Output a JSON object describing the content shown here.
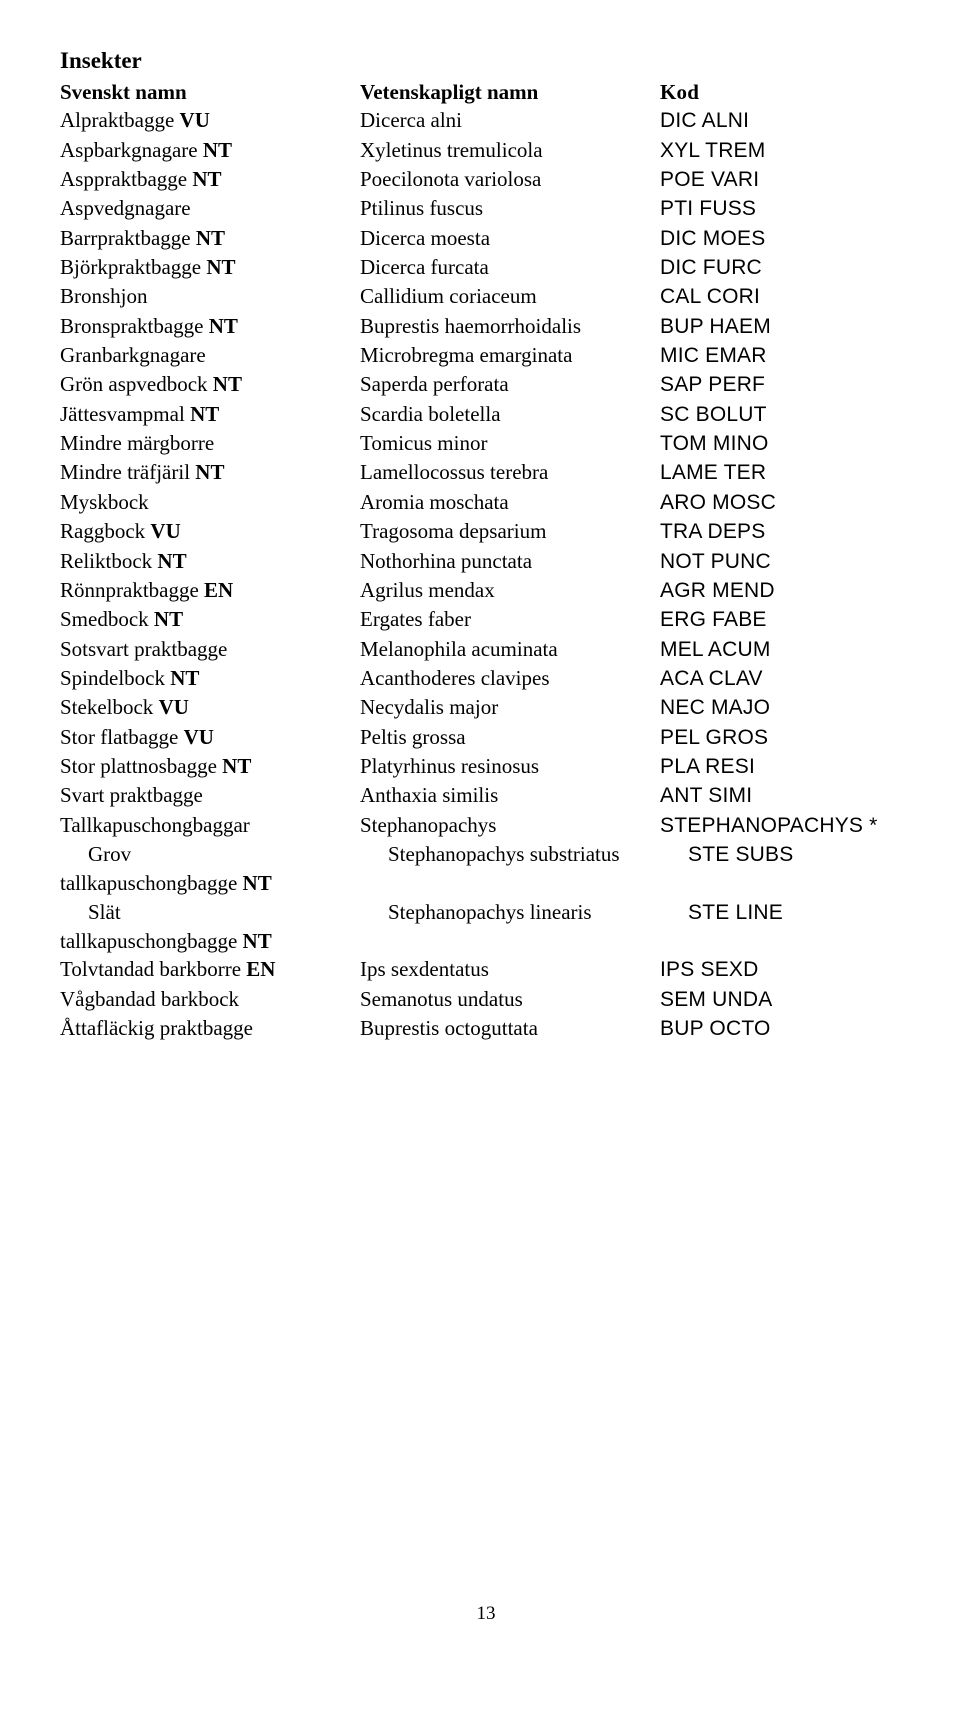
{
  "title": "Insekter",
  "headers": {
    "col1": "Svenskt namn",
    "col2": "Vetenskapligt namn",
    "col3": "Kod"
  },
  "rows": [
    {
      "sw": "Alpraktbagge",
      "suf": "VU",
      "sci": "Dicerca alni",
      "code": "DIC ALNI"
    },
    {
      "sw": "Aspbarkgnagare",
      "suf": "NT",
      "sci": "Xyletinus tremulicola",
      "code": "XYL TREM"
    },
    {
      "sw": "Asppraktbagge",
      "suf": "NT",
      "sci": "Poecilonota variolosa",
      "code": "POE VARI"
    },
    {
      "sw": "Aspvedgnagare",
      "suf": "",
      "sci": "Ptilinus fuscus",
      "code": "PTI FUSS"
    },
    {
      "sw": "Barrpraktbagge",
      "suf": "NT",
      "sci": "Dicerca moesta",
      "code": "DIC MOES"
    },
    {
      "sw": "Björkpraktbagge",
      "suf": "NT",
      "sci": "Dicerca furcata",
      "code": "DIC FURC"
    },
    {
      "sw": "Bronshjon",
      "suf": "",
      "sci": "Callidium coriaceum",
      "code": "CAL CORI"
    },
    {
      "sw": "Bronspraktbagge",
      "suf": "NT",
      "sci": "Buprestis haemorrhoidalis",
      "code": "BUP HAEM"
    },
    {
      "sw": "Granbarkgnagare",
      "suf": "",
      "sci": "Microbregma emarginata",
      "code": "MIC EMAR"
    },
    {
      "sw": "Grön aspvedbock",
      "suf": "NT",
      "sci": "Saperda perforata",
      "code": "SAP PERF"
    },
    {
      "sw": "Jättesvampmal",
      "suf": "NT",
      "sci": "Scardia boletella",
      "code": "SC BOLUT"
    },
    {
      "sw": "Mindre märgborre",
      "suf": "",
      "sci": "Tomicus minor",
      "code": "TOM MINO"
    },
    {
      "sw": "Mindre träfjäril",
      "suf": "NT",
      "sci": "Lamellocossus terebra",
      "code": "LAME TER"
    },
    {
      "sw": "Myskbock",
      "suf": "",
      "sci": "Aromia moschata",
      "code": "ARO MOSC"
    },
    {
      "sw": "Raggbock",
      "suf": "VU",
      "sci": "Tragosoma depsarium",
      "code": "TRA DEPS"
    },
    {
      "sw": "Reliktbock",
      "suf": "NT",
      "sci": "Nothorhina punctata",
      "code": "NOT PUNC"
    },
    {
      "sw": "Rönnpraktbagge",
      "suf": "EN",
      "sci": "Agrilus mendax",
      "code": "AGR MEND"
    },
    {
      "sw": "Smedbock",
      "suf": "NT",
      "sci": "Ergates faber",
      "code": "ERG FABE"
    },
    {
      "sw": "Sotsvart praktbagge",
      "suf": "",
      "sci": "Melanophila acuminata",
      "code": "MEL ACUM"
    },
    {
      "sw": "Spindelbock",
      "suf": "NT",
      "sci": "Acanthoderes clavipes",
      "code": "ACA CLAV"
    },
    {
      "sw": "Stekelbock",
      "suf": "VU",
      "sci": "Necydalis major",
      "code": "NEC MAJO"
    },
    {
      "sw": "Stor flatbagge",
      "suf": "VU",
      "sci": "Peltis grossa",
      "code": "PEL GROS"
    },
    {
      "sw": "Stor plattnosbagge",
      "suf": "NT",
      "sci": "Platyrhinus resinosus",
      "code": "PLA RESI"
    },
    {
      "sw": "Svart praktbagge",
      "suf": "",
      "sci": "Anthaxia similis",
      "code": "ANT SIMI"
    },
    {
      "sw": "Tallkapuschongbaggar",
      "suf": "",
      "sci": "Stephanopachys",
      "code": "STEPHANOPACHYS *"
    },
    {
      "sw": "Grov",
      "suf": "",
      "sci": "Stephanopachys substriatus",
      "code": "STE SUBS",
      "indent": true,
      "wrap": "tallkapuschongbagge",
      "wrapSuf": "NT"
    },
    {
      "sw": "Slät",
      "suf": "",
      "sci": "Stephanopachys linearis",
      "code": "STE LINE",
      "indent": true,
      "wrap": "tallkapuschongbagge",
      "wrapSuf": "NT"
    },
    {
      "sw": "Tolvtandad barkborre",
      "suf": "EN",
      "sci": "Ips sexdentatus",
      "code": "IPS SEXD"
    },
    {
      "sw": "Vågbandad barkbock",
      "suf": "",
      "sci": "Semanotus undatus",
      "code": "SEM UNDA"
    },
    {
      "sw": "Åttafläckig praktbagge",
      "suf": "",
      "sci": "Buprestis octoguttata",
      "code": "BUP OCTO"
    }
  ],
  "pageNumber": "13"
}
